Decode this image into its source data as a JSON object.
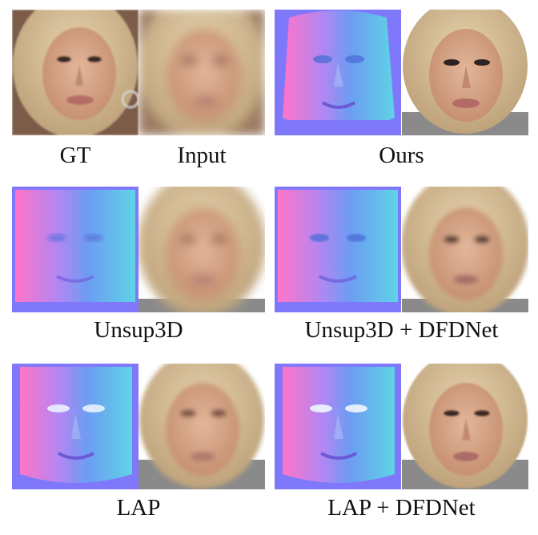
{
  "captions": {
    "gt": "GT",
    "input": "Input",
    "ours": "Ours",
    "unsup3d": "Unsup3D",
    "unsup3d_dfdnet": "Unsup3D + DFDNet",
    "lap": "LAP",
    "lap_dfdnet": "LAP + DFDNet"
  },
  "colors": {
    "normal_blue": "#7f7fff",
    "normal_pink": "#e07ad8",
    "normal_cyan": "#7ad8e8",
    "skin": "#d9a88a",
    "hair": "#d8c09a",
    "background_gray": "#8a8a8a"
  }
}
